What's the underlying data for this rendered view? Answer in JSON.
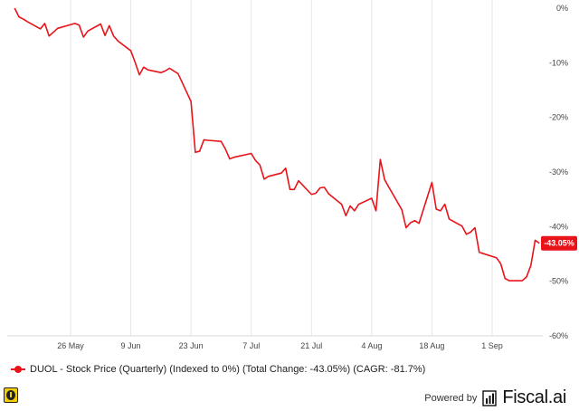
{
  "chart_data": {
    "type": "line",
    "series": [
      {
        "name": "DUOL - Stock Price (Quarterly) (Indexed to 0%) (Total Change: -43.05%) (CAGR: -81.7%)",
        "color": "#e8141a",
        "points": [
          [
            "2025-05-13",
            0
          ],
          [
            "2025-05-14",
            -1.6
          ],
          [
            "2025-05-15",
            -2.0
          ],
          [
            "2025-05-16",
            -2.5
          ],
          [
            "2025-05-19",
            -3.8
          ],
          [
            "2025-05-20",
            -2.8
          ],
          [
            "2025-05-21",
            -5.1
          ],
          [
            "2025-05-22",
            -4.4
          ],
          [
            "2025-05-23",
            -3.7
          ],
          [
            "2025-05-27",
            -2.8
          ],
          [
            "2025-05-28",
            -3.1
          ],
          [
            "2025-05-29",
            -5.3
          ],
          [
            "2025-05-30",
            -4.2
          ],
          [
            "2025-06-02",
            -2.9
          ],
          [
            "2025-06-03",
            -5.0
          ],
          [
            "2025-06-04",
            -3.2
          ],
          [
            "2025-06-05",
            -5.1
          ],
          [
            "2025-06-06",
            -6.0
          ],
          [
            "2025-06-09",
            -7.8
          ],
          [
            "2025-06-10",
            -9.9
          ],
          [
            "2025-06-11",
            -12.2
          ],
          [
            "2025-06-12",
            -10.8
          ],
          [
            "2025-06-13",
            -11.3
          ],
          [
            "2025-06-16",
            -11.8
          ],
          [
            "2025-06-17",
            -11.5
          ],
          [
            "2025-06-18",
            -11.0
          ],
          [
            "2025-06-20",
            -12.0
          ],
          [
            "2025-06-23",
            -17.1
          ],
          [
            "2025-06-24",
            -26.4
          ],
          [
            "2025-06-25",
            -26.2
          ],
          [
            "2025-06-26",
            -24.1
          ],
          [
            "2025-06-27",
            -24.2
          ],
          [
            "2025-06-30",
            -24.4
          ],
          [
            "2025-07-01",
            -25.8
          ],
          [
            "2025-07-02",
            -27.6
          ],
          [
            "2025-07-03",
            -27.3
          ],
          [
            "2025-07-07",
            -26.6
          ],
          [
            "2025-07-08",
            -27.9
          ],
          [
            "2025-07-09",
            -28.7
          ],
          [
            "2025-07-10",
            -31.3
          ],
          [
            "2025-07-11",
            -30.8
          ],
          [
            "2025-07-14",
            -30.2
          ],
          [
            "2025-07-15",
            -29.3
          ],
          [
            "2025-07-16",
            -33.2
          ],
          [
            "2025-07-17",
            -33.2
          ],
          [
            "2025-07-18",
            -31.6
          ],
          [
            "2025-07-21",
            -34.1
          ],
          [
            "2025-07-22",
            -33.9
          ],
          [
            "2025-07-23",
            -32.9
          ],
          [
            "2025-07-24",
            -32.8
          ],
          [
            "2025-07-25",
            -34.0
          ],
          [
            "2025-07-28",
            -35.9
          ],
          [
            "2025-07-29",
            -38.0
          ],
          [
            "2025-07-30",
            -36.2
          ],
          [
            "2025-07-31",
            -37.1
          ],
          [
            "2025-08-01",
            -35.9
          ],
          [
            "2025-08-04",
            -34.8
          ],
          [
            "2025-08-05",
            -37.1
          ],
          [
            "2025-08-06",
            -27.7
          ],
          [
            "2025-08-07",
            -31.4
          ],
          [
            "2025-08-08",
            -32.8
          ],
          [
            "2025-08-11",
            -36.9
          ],
          [
            "2025-08-12",
            -40.2
          ],
          [
            "2025-08-13",
            -39.3
          ],
          [
            "2025-08-14",
            -38.9
          ],
          [
            "2025-08-15",
            -39.4
          ],
          [
            "2025-08-18",
            -31.9
          ],
          [
            "2025-08-19",
            -36.8
          ],
          [
            "2025-08-20",
            -37.1
          ],
          [
            "2025-08-21",
            -35.9
          ],
          [
            "2025-08-22",
            -38.6
          ],
          [
            "2025-08-25",
            -39.9
          ],
          [
            "2025-08-26",
            -41.4
          ],
          [
            "2025-08-27",
            -41.0
          ],
          [
            "2025-08-28",
            -40.2
          ],
          [
            "2025-08-29",
            -44.7
          ],
          [
            "2025-09-02",
            -45.7
          ],
          [
            "2025-09-03",
            -46.8
          ],
          [
            "2025-09-04",
            -49.5
          ],
          [
            "2025-09-05",
            -49.9
          ],
          [
            "2025-09-08",
            -49.9
          ],
          [
            "2025-09-09",
            -49.2
          ],
          [
            "2025-09-10",
            -47.1
          ],
          [
            "2025-09-11",
            -42.5
          ],
          [
            "2025-09-12",
            -43.05
          ]
        ]
      }
    ],
    "x_tick_labels": [
      "26 May",
      "9 Jun",
      "23 Jun",
      "7 Jul",
      "21 Jul",
      "4 Aug",
      "18 Aug",
      "1 Sep"
    ],
    "y_tick_labels": [
      "0%",
      "-10%",
      "-20%",
      "-30%",
      "-40%",
      "-50%",
      "-60%"
    ],
    "y_ticks": [
      0,
      -10,
      -20,
      -30,
      -40,
      -50,
      -60
    ],
    "ylim": [
      -60,
      0
    ],
    "grid": "vertical",
    "last_value_label": "-43.05%",
    "legend_text": "DUOL - Stock Price (Quarterly) (Indexed to 0%) (Total Change: -43.05%) (CAGR: -81.7%)",
    "legend_position": "bottom-left"
  },
  "footer": {
    "powered_by": "Powered by",
    "brand": "Fiscal.ai"
  }
}
